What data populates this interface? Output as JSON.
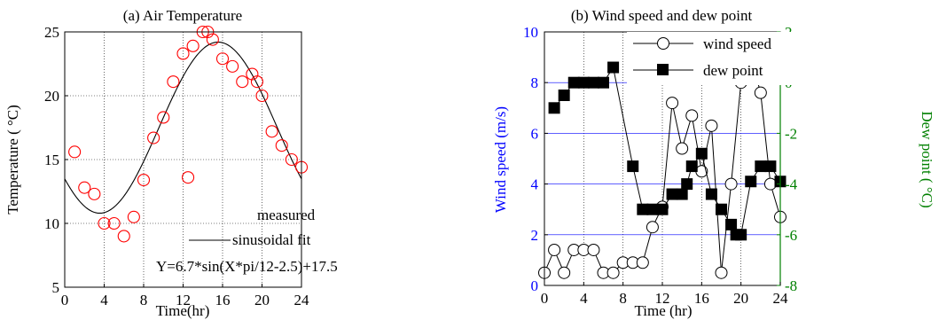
{
  "chart_data": [
    {
      "type": "scatter",
      "title": "(a) Air Temperature",
      "xlabel": "Time(hr)",
      "ylabel": "Temperature ( °C)",
      "xlim": [
        0,
        24
      ],
      "ylim": [
        5,
        25
      ],
      "xticks": [
        0,
        4,
        8,
        12,
        16,
        20,
        24
      ],
      "yticks": [
        5,
        10,
        15,
        20,
        25
      ],
      "grid": true,
      "legend_position": "center-right",
      "annotation": "Y=6.7*sin(X*pi/12-2.5)+17.5",
      "colors": {
        "measured": "#ff0000",
        "fit": "#000000"
      },
      "series": [
        {
          "name": "measured",
          "style": "open-circle",
          "x": [
            1,
            2,
            3,
            4,
            5,
            6,
            7,
            8,
            9,
            10,
            11,
            12,
            12.5,
            13,
            14,
            14.5,
            15,
            16,
            17,
            18,
            19,
            19.5,
            20,
            21,
            22,
            23,
            24
          ],
          "y": [
            15.6,
            12.8,
            12.3,
            10.0,
            10.0,
            9.0,
            10.5,
            13.4,
            16.7,
            18.3,
            21.1,
            23.3,
            13.6,
            23.9,
            25.0,
            25.0,
            24.4,
            22.9,
            22.3,
            21.1,
            21.7,
            21.1,
            20.0,
            17.2,
            16.1,
            15.0,
            14.4
          ]
        },
        {
          "name": "sinusoidal fit",
          "style": "line",
          "amplitude": 6.7,
          "offset": 17.5,
          "phase": -2.5,
          "period_hr": 24
        }
      ]
    },
    {
      "type": "line",
      "title": "(b) Wind speed and dew point",
      "xlabel": "Time (hr)",
      "ylabel": "Wind speed (m/s)",
      "y2label": "Dew point ( °C)",
      "xlim": [
        0,
        24
      ],
      "ylim": [
        0,
        10
      ],
      "y2lim": [
        -8,
        2
      ],
      "xticks": [
        0,
        4,
        8,
        12,
        16,
        20,
        24
      ],
      "yticks": [
        0,
        2,
        4,
        6,
        8,
        10
      ],
      "y2ticks": [
        -8,
        -6,
        -4,
        -2,
        0,
        2
      ],
      "grid": true,
      "legend_position": "top-right",
      "colors": {
        "left_axis": "#0000ff",
        "right_axis": "#008000",
        "grid": "#0000ff"
      },
      "series": [
        {
          "name": "wind speed",
          "style": "open-circle",
          "axis": "left",
          "x": [
            0,
            1,
            2,
            3,
            4,
            5,
            6,
            7,
            8,
            9,
            10,
            11,
            12,
            13,
            14,
            15,
            16,
            17,
            18,
            19,
            20,
            21,
            22,
            23,
            24
          ],
          "y": [
            0.5,
            1.4,
            0.5,
            1.4,
            1.4,
            1.4,
            0.5,
            0.5,
            0.9,
            0.9,
            0.9,
            2.3,
            3.1,
            7.2,
            5.4,
            6.7,
            4.5,
            6.3,
            0.5,
            4.0,
            8.0,
            9.0,
            7.6,
            4.0,
            2.7
          ]
        },
        {
          "name": "dew point",
          "style": "filled-square",
          "axis": "right",
          "x": [
            1,
            2,
            3,
            4,
            5,
            6,
            7,
            9,
            10,
            11,
            12,
            13,
            14,
            14.5,
            15,
            16,
            17,
            18,
            19,
            19.5,
            20,
            21,
            22,
            23,
            24
          ],
          "y": [
            -1.0,
            -0.5,
            0.0,
            0.0,
            0.0,
            0.0,
            0.6,
            -3.3,
            -5.0,
            -5.0,
            -5.0,
            -4.4,
            -4.4,
            -4.0,
            -3.3,
            -2.8,
            -4.4,
            -5.0,
            -5.6,
            -6.0,
            -6.0,
            -3.9,
            -3.3,
            -3.3,
            -3.9
          ]
        }
      ]
    }
  ]
}
